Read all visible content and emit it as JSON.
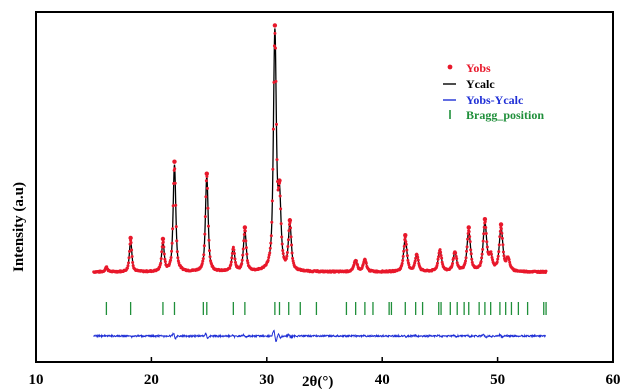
{
  "chart_data": {
    "type": "line",
    "xlabel": "2θ(°)",
    "ylabel": "Intensity (a.u)",
    "xlim": [
      10,
      60
    ],
    "x_ticks": [
      10,
      20,
      30,
      40,
      50,
      60
    ],
    "legend_position": "top-right",
    "colors": {
      "yobs": "#e8182b",
      "ycalc": "#000000",
      "diff": "#1f2fd6",
      "bragg": "#1f8f3a"
    },
    "background_level": 0.03,
    "peaks": [
      {
        "x": 16.1,
        "y": 0.02
      },
      {
        "x": 18.2,
        "y": 0.13
      },
      {
        "x": 21.0,
        "y": 0.12
      },
      {
        "x": 22.0,
        "y": 0.45
      },
      {
        "x": 24.8,
        "y": 0.4
      },
      {
        "x": 27.1,
        "y": 0.1
      },
      {
        "x": 28.1,
        "y": 0.17
      },
      {
        "x": 30.7,
        "y": 1.0
      },
      {
        "x": 31.1,
        "y": 0.28
      },
      {
        "x": 32.0,
        "y": 0.19
      },
      {
        "x": 37.7,
        "y": 0.05
      },
      {
        "x": 38.5,
        "y": 0.05
      },
      {
        "x": 42.0,
        "y": 0.14
      },
      {
        "x": 43.0,
        "y": 0.07
      },
      {
        "x": 45.0,
        "y": 0.09
      },
      {
        "x": 46.3,
        "y": 0.08
      },
      {
        "x": 47.5,
        "y": 0.17
      },
      {
        "x": 48.9,
        "y": 0.2
      },
      {
        "x": 49.4,
        "y": 0.06
      },
      {
        "x": 50.3,
        "y": 0.18
      },
      {
        "x": 50.9,
        "y": 0.05
      }
    ],
    "bragg_positions": [
      16.1,
      18.2,
      21.0,
      22.0,
      24.5,
      24.8,
      27.1,
      28.1,
      30.7,
      31.1,
      31.9,
      32.9,
      34.3,
      36.9,
      37.7,
      38.5,
      39.2,
      40.6,
      40.8,
      42.0,
      42.9,
      43.5,
      44.9,
      45.1,
      45.9,
      46.5,
      47.1,
      47.5,
      48.4,
      48.9,
      49.4,
      50.2,
      50.7,
      51.2,
      51.8,
      52.6,
      54.0,
      54.2
    ],
    "series": [
      {
        "name": "Yobs"
      },
      {
        "name": "Ycalc"
      },
      {
        "name": "Yobs-Ycalc"
      },
      {
        "name": "Bragg_position"
      }
    ]
  }
}
